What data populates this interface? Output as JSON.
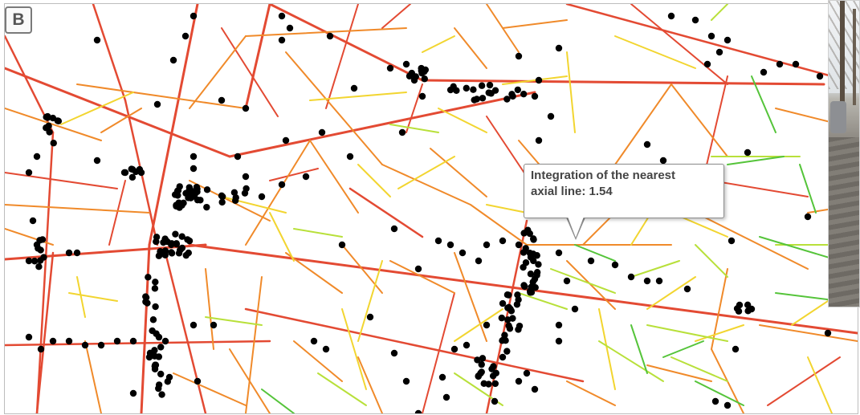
{
  "panel_label": "B",
  "tooltip": {
    "line1": "Integration of the nearest",
    "line2": "axial line: 1.54"
  },
  "colors": {
    "red": "#e34a33",
    "orange": "#f08a2a",
    "yellow": "#f2d530",
    "lightgreen": "#b8e03a",
    "green": "#55c43a",
    "point": "#000000"
  },
  "photo_inset": {
    "icon": "street-photo-thumbnail"
  }
}
